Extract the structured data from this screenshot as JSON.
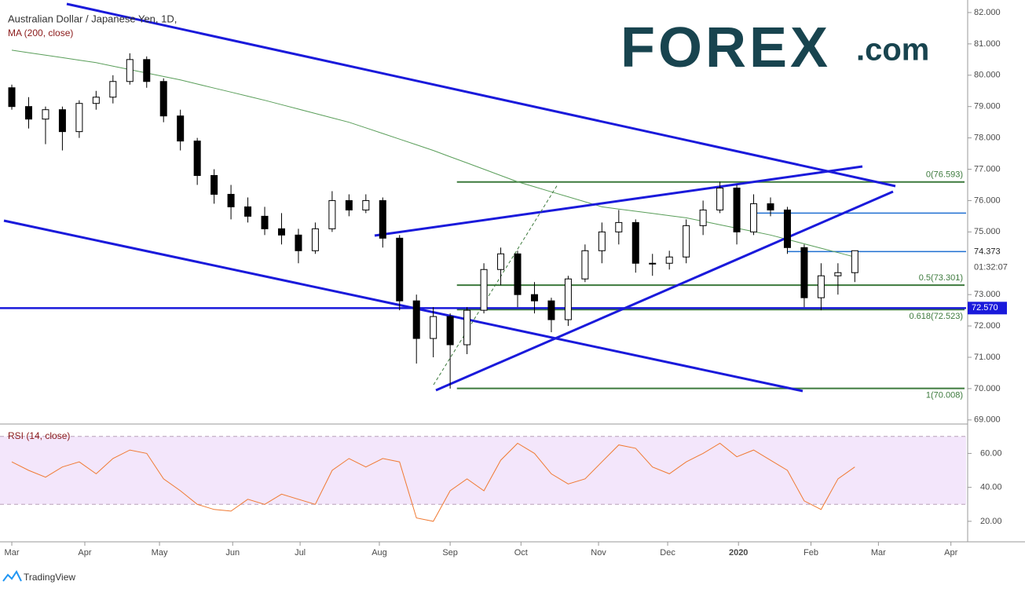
{
  "chart_data": {
    "type": "candlestick",
    "title": "Australian Dollar / Japanese Yen, 1D,",
    "subtitle": "MA (200, close)",
    "logo": {
      "brand": "FOREX",
      "suffix": ".com"
    },
    "footer": "TradingView",
    "open": [
      79.6,
      79.0,
      78.6,
      78.9,
      78.2,
      79.1,
      79.3,
      79.8,
      80.5,
      79.8,
      78.7,
      77.9,
      76.8,
      76.2,
      75.8,
      75.5,
      75.1,
      74.9,
      74.4,
      75.1,
      76.0,
      75.7,
      76.0,
      74.8,
      72.8,
      71.6,
      72.3,
      71.4,
      72.5,
      73.8,
      74.3,
      73.0,
      72.8,
      72.2,
      73.5,
      74.4,
      75.0,
      75.3,
      74.0,
      74.0,
      74.2,
      75.2,
      75.7,
      76.4,
      75.0,
      75.9,
      75.7,
      74.5,
      72.9,
      73.6,
      73.7
    ],
    "high": [
      79.7,
      79.3,
      79.0,
      79.0,
      79.2,
      79.5,
      80.0,
      80.7,
      80.6,
      79.9,
      78.9,
      78.0,
      77.0,
      76.5,
      76.1,
      75.8,
      75.6,
      75.1,
      75.3,
      76.3,
      76.2,
      76.2,
      76.1,
      74.9,
      73.0,
      72.6,
      72.4,
      72.6,
      74.0,
      74.5,
      74.4,
      73.4,
      72.9,
      73.6,
      74.6,
      75.3,
      75.7,
      75.4,
      74.3,
      74.4,
      75.4,
      76.0,
      76.6,
      76.5,
      76.2,
      76.1,
      75.8,
      74.6,
      74.0,
      74.0,
      74.4
    ],
    "low": [
      78.9,
      78.3,
      77.8,
      77.6,
      78.0,
      78.9,
      79.1,
      79.7,
      79.6,
      78.5,
      77.6,
      76.5,
      75.9,
      75.4,
      75.3,
      74.9,
      74.6,
      74.0,
      74.3,
      75.0,
      75.5,
      75.6,
      74.5,
      72.5,
      70.8,
      71.0,
      70.0,
      71.1,
      72.4,
      73.3,
      72.6,
      72.4,
      71.8,
      72.0,
      73.4,
      74.0,
      74.6,
      73.7,
      73.6,
      73.8,
      74.0,
      74.9,
      75.6,
      74.6,
      74.9,
      75.5,
      74.3,
      72.6,
      72.5,
      73.0,
      73.4
    ],
    "close": [
      79.0,
      78.6,
      78.9,
      78.2,
      79.1,
      79.3,
      79.8,
      80.5,
      79.8,
      78.7,
      77.9,
      76.8,
      76.2,
      75.8,
      75.5,
      75.1,
      74.9,
      74.4,
      75.1,
      76.0,
      75.7,
      76.0,
      74.8,
      72.8,
      71.6,
      72.3,
      71.4,
      72.5,
      73.8,
      74.3,
      73.0,
      72.8,
      72.2,
      73.5,
      74.4,
      75.0,
      75.3,
      74.0,
      74.0,
      74.2,
      75.2,
      75.7,
      76.4,
      75.0,
      75.9,
      75.7,
      74.5,
      72.9,
      73.6,
      73.7,
      74.4
    ],
    "ma": {
      "color": "#5a9e5a",
      "values": [
        80.8,
        80.72,
        80.64,
        80.56,
        80.48,
        80.4,
        80.29,
        80.18,
        80.07,
        79.96,
        79.85,
        79.72,
        79.59,
        79.46,
        79.33,
        79.2,
        79.06,
        78.92,
        78.78,
        78.64,
        78.5,
        78.32,
        78.14,
        77.96,
        77.78,
        77.6,
        77.4,
        77.2,
        77.0,
        76.8,
        76.6,
        76.44,
        76.28,
        76.12,
        75.96,
        75.8,
        75.73,
        75.66,
        75.59,
        75.52,
        75.45,
        75.34,
        75.23,
        75.12,
        75.01,
        74.9,
        74.76,
        74.62,
        74.48,
        74.34,
        74.2
      ]
    },
    "candle_colors": {
      "up": "#ffffff",
      "down": "#000000",
      "outline": "#000000"
    },
    "xlim": [
      -0.7,
      56.6
    ],
    "xticks": [
      {
        "value": 0,
        "label": "Mar"
      },
      {
        "value": 4.33,
        "label": "Apr"
      },
      {
        "value": 8.76,
        "label": "May"
      },
      {
        "value": 13.1,
        "label": "Jun"
      },
      {
        "value": 17.1,
        "label": "Jul"
      },
      {
        "value": 21.8,
        "label": "Aug"
      },
      {
        "value": 26.0,
        "label": "Sep"
      },
      {
        "value": 30.2,
        "label": "Oct"
      },
      {
        "value": 34.8,
        "label": "Nov"
      },
      {
        "value": 38.9,
        "label": "Dec"
      },
      {
        "value": 43.1,
        "label": "2020"
      },
      {
        "value": 47.4,
        "label": "Feb"
      },
      {
        "value": 51.4,
        "label": "Mar"
      },
      {
        "value": 55.7,
        "label": "Apr"
      }
    ],
    "ylim": [
      68.87,
      82.4
    ],
    "yticks": [
      {
        "value": 69,
        "label": "69.000"
      },
      {
        "value": 70,
        "label": "70.000"
      },
      {
        "value": 71,
        "label": "71.000"
      },
      {
        "value": 72,
        "label": "72.000"
      },
      {
        "value": 73,
        "label": "73.000"
      },
      {
        "value": 75,
        "label": "75.000"
      },
      {
        "value": 76,
        "label": "76.000"
      },
      {
        "value": 77,
        "label": "77.000"
      },
      {
        "value": 78,
        "label": "78.000"
      },
      {
        "value": 79,
        "label": "79.000"
      },
      {
        "value": 80,
        "label": "80.000"
      },
      {
        "value": 81,
        "label": "81.000"
      },
      {
        "value": 82,
        "label": "82.000"
      }
    ],
    "fib_levels": {
      "color": "#3d7a3d",
      "start": 26.4,
      "levels": [
        {
          "value": 76.593,
          "label": "0(76.593)"
        },
        {
          "value": 73.301,
          "label": "0.5(73.301)"
        },
        {
          "value": 72.523,
          "label": "0.618(72.523)"
        },
        {
          "value": 70.008,
          "label": "1(70.008)"
        }
      ]
    },
    "support": {
      "value": 72.57,
      "label": "72.570",
      "color": "#1a1adb"
    },
    "resistance": {
      "value": 75.6,
      "start": 44.2,
      "color": "#1f6fd1"
    },
    "last_price": {
      "value": 74.373,
      "label": "74.373",
      "countdown": "01:32:07",
      "start": 46.0,
      "color": "#1f6fd1"
    },
    "rsi": {
      "title": "RSI (14, close)",
      "color": "#f07a33",
      "band": [
        30,
        70
      ],
      "ylim": [
        10,
        75
      ],
      "yticks": [
        {
          "value": 20,
          "label": "20.00"
        },
        {
          "value": 40,
          "label": "40.00"
        },
        {
          "value": 60,
          "label": "60.00"
        }
      ],
      "values": [
        55,
        50,
        46,
        52,
        55,
        48,
        57,
        62,
        60,
        45,
        38,
        30,
        27,
        26,
        33,
        30,
        36,
        33,
        30,
        50,
        57,
        52,
        57,
        55,
        22,
        20,
        38,
        45,
        38,
        56,
        66,
        60,
        48,
        42,
        45,
        55,
        65,
        63,
        52,
        48,
        55,
        60,
        66,
        58,
        62,
        56,
        50,
        32,
        27,
        45,
        52
      ]
    }
  }
}
